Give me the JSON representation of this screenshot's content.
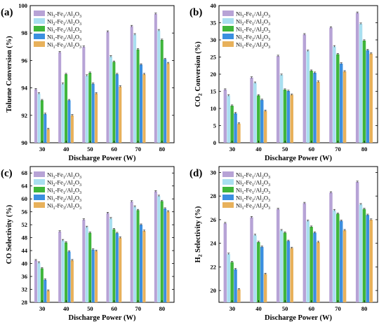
{
  "colors": {
    "Ni3-Fe1": "#b7a3d6",
    "Ni2-Fe1": "#a9dff0",
    "Ni1-Fe1": "#3fb63a",
    "Ni1-Fe2": "#3b8fe0",
    "Ni1-Fe3": "#e8b15b"
  },
  "chart_data": [
    {
      "type": "bar",
      "panel": "(a)",
      "xlabel": "Discharge Power (W)",
      "ylabel": "Toluene Conversion (%)",
      "ylim": [
        90,
        100
      ],
      "yticks": [
        90,
        92,
        94,
        96,
        98,
        100
      ],
      "categories": [
        "30",
        "40",
        "50",
        "60",
        "70",
        "80"
      ],
      "legend_position": "top-left",
      "series": [
        {
          "name": "Ni3-Fe1/Al2O3",
          "key": "Ni3-Fe1",
          "values": [
            93.9,
            96.6,
            97.0,
            98.1,
            98.5,
            99.4
          ]
        },
        {
          "name": "Ni2-Fe1/Al2O3",
          "key": "Ni2-Fe1",
          "values": [
            93.6,
            94.3,
            94.9,
            96.3,
            97.9,
            98.2
          ]
        },
        {
          "name": "Ni1-Fe1/Al2O3",
          "key": "Ni1-Fe1",
          "values": [
            93.1,
            95.0,
            95.1,
            95.9,
            96.8,
            97.5
          ]
        },
        {
          "name": "Ni1-Fe2/Al2O3",
          "key": "Ni1-Fe2",
          "values": [
            92.1,
            93.1,
            94.3,
            95.0,
            95.7,
            96.1
          ]
        },
        {
          "name": "Ni1-Fe3/Al2O3",
          "key": "Ni1-Fe3",
          "values": [
            91.0,
            92.0,
            93.6,
            94.1,
            95.0,
            95.8
          ]
        }
      ]
    },
    {
      "type": "bar",
      "panel": "(b)",
      "xlabel": "Discharge Power (W)",
      "ylabel": "CO2 Conversion (%)",
      "ylim": [
        0,
        40
      ],
      "yticks": [
        0,
        5,
        10,
        15,
        20,
        25,
        30,
        35,
        40
      ],
      "categories": [
        "30",
        "40",
        "50",
        "60",
        "70",
        "80"
      ],
      "legend_position": "top-left",
      "series": [
        {
          "name": "Ni3-Fe1/Al2O3",
          "key": "Ni3-Fe1",
          "values": [
            15.5,
            19.0,
            25.3,
            31.6,
            33.6,
            37.9
          ]
        },
        {
          "name": "Ni2-Fe1/Al2O3",
          "key": "Ni2-Fe1",
          "values": [
            13.8,
            17.5,
            19.8,
            26.8,
            28.1,
            34.7
          ]
        },
        {
          "name": "Ni1-Fe1/Al2O3",
          "key": "Ni1-Fe1",
          "values": [
            10.8,
            13.8,
            15.5,
            21.0,
            25.8,
            29.8
          ]
        },
        {
          "name": "Ni1-Fe2/Al2O3",
          "key": "Ni1-Fe2",
          "values": [
            8.6,
            12.5,
            15.1,
            20.4,
            23.1,
            27.0
          ]
        },
        {
          "name": "Ni1-Fe3/Al2O3",
          "key": "Ni1-Fe3",
          "values": [
            5.6,
            9.3,
            14.0,
            17.8,
            20.8,
            26.0
          ]
        }
      ]
    },
    {
      "type": "bar",
      "panel": "(c)",
      "xlabel": "Discharge Power (W)",
      "ylabel": "CO Selectivity (%)",
      "ylim": [
        28,
        70
      ],
      "yticks": [
        28,
        32,
        36,
        40,
        44,
        48,
        52,
        56,
        60,
        64,
        68
      ],
      "categories": [
        "30",
        "40",
        "50",
        "60",
        "70",
        "80"
      ],
      "legend_position": "top-left",
      "series": [
        {
          "name": "Ni3-Fe1/Al2O3",
          "key": "Ni3-Fe1",
          "values": [
            41.0,
            49.9,
            53.6,
            55.6,
            59.2,
            62.3
          ]
        },
        {
          "name": "Ni2-Fe1/Al2O3",
          "key": "Ni2-Fe1",
          "values": [
            40.3,
            47.2,
            51.3,
            54.0,
            57.6,
            60.9
          ]
        },
        {
          "name": "Ni1-Fe1/Al2O3",
          "key": "Ni1-Fe1",
          "values": [
            38.5,
            46.5,
            49.5,
            50.6,
            56.5,
            59.3
          ]
        },
        {
          "name": "Ni1-Fe2/Al2O3",
          "key": "Ni1-Fe2",
          "values": [
            35.0,
            43.7,
            44.3,
            49.4,
            52.0,
            57.0
          ]
        },
        {
          "name": "Ni1-Fe3/Al2O3",
          "key": "Ni1-Fe3",
          "values": [
            31.6,
            41.0,
            43.9,
            48.0,
            50.1,
            56.1
          ]
        }
      ]
    },
    {
      "type": "bar",
      "panel": "(d)",
      "xlabel": "Discharge Power (W)",
      "ylabel": "H2 Selectivity (%)",
      "ylim": [
        19,
        30.5
      ],
      "yticks": [
        20,
        22,
        24,
        26,
        28,
        30
      ],
      "categories": [
        "30",
        "40",
        "50",
        "60",
        "70",
        "80"
      ],
      "legend_position": "top-left",
      "series": [
        {
          "name": "Ni3-Fe1/Al2O3",
          "key": "Ni3-Fe1",
          "values": [
            25.7,
            26.2,
            26.9,
            27.4,
            28.3,
            29.2
          ]
        },
        {
          "name": "Ni2-Fe1/Al2O3",
          "key": "Ni2-Fe1",
          "values": [
            23.1,
            24.7,
            25.1,
            25.9,
            26.8,
            27.3
          ]
        },
        {
          "name": "Ni1-Fe1/Al2O3",
          "key": "Ni1-Fe1",
          "values": [
            22.4,
            24.1,
            24.9,
            25.4,
            26.5,
            26.9
          ]
        },
        {
          "name": "Ni1-Fe2/Al2O3",
          "key": "Ni1-Fe2",
          "values": [
            21.8,
            23.7,
            24.2,
            24.9,
            25.9,
            26.4
          ]
        },
        {
          "name": "Ni1-Fe3/Al2O3",
          "key": "Ni1-Fe3",
          "values": [
            20.1,
            21.4,
            23.6,
            24.1,
            25.1,
            26.0
          ]
        }
      ]
    }
  ]
}
